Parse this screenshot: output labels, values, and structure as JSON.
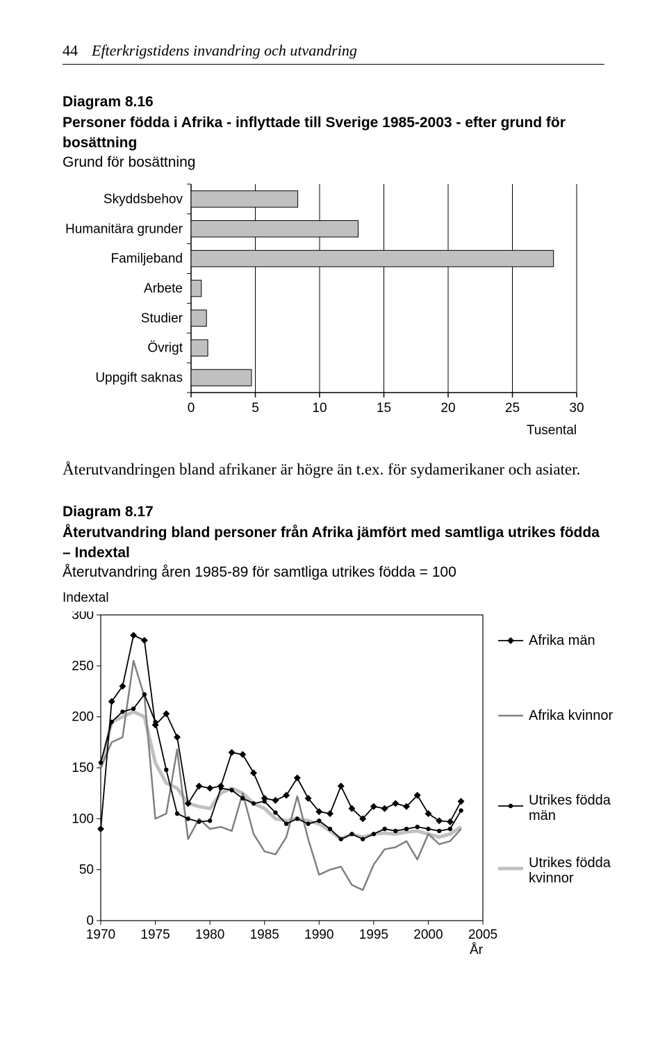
{
  "header": {
    "page_number": "44",
    "running_title": "Efterkrigstidens invandring och utvandring"
  },
  "fig1": {
    "title_line1": "Diagram 8.16",
    "title_line2": "Personer födda i Afrika - inflyttade till Sverige 1985-2003 - efter grund för bosättning",
    "subtitle": "Grund för bosättning",
    "type": "bar",
    "bar_fill": "#c0c0c0",
    "bar_stroke": "#000000",
    "axis_color": "#000000",
    "grid_color": "#000000",
    "tick_color": "#000000",
    "background_color": "#ffffff",
    "label_fontsize": 19,
    "tick_fontsize": 19,
    "xlim": [
      0,
      30
    ],
    "xtick_step": 5,
    "x_axis_label_right": "Tusental",
    "categories": [
      "Skyddsbehov",
      "Humanitära grunder",
      "Familjeband",
      "Arbete",
      "Studier",
      "Övrigt",
      "Uppgift saknas"
    ],
    "values": [
      8.3,
      13.0,
      28.2,
      0.8,
      1.2,
      1.3,
      4.7
    ]
  },
  "body_text": "Återutvandringen bland afrikaner är högre än t.ex. för sydamerikaner och asiater.",
  "fig2": {
    "title_line1": "Diagram 8.17",
    "title_line2": "Återutvandring bland personer från Afrika jämfört med samtliga utrikes födda – Indextal",
    "subtitle_line": "Återutvandring åren 1985-89 för samtliga utrikes födda = 100",
    "y_axis_label": "Indextal",
    "x_axis_label": "År",
    "type": "line",
    "background_color": "#ffffff",
    "axis_color": "#000000",
    "grid_color": "#000000",
    "ylim": [
      0,
      300
    ],
    "ytick_step": 50,
    "xlim": [
      1970,
      2005
    ],
    "xtick_step": 5,
    "label_fontsize": 19,
    "tick_fontsize": 19,
    "legend_fontsize": 20,
    "legend": [
      {
        "label": "Afrika män",
        "color": "#000000",
        "marker": "diamond"
      },
      {
        "label": "Afrika kvinnor",
        "color": "#808080",
        "marker": "none"
      },
      {
        "label": "Utrikes födda män",
        "color": "#000000",
        "marker": "dot"
      },
      {
        "label": "Utrikes födda kvinnor",
        "color": "#c0c0c0",
        "marker": "none"
      }
    ],
    "series": {
      "years": [
        1970,
        1971,
        1972,
        1973,
        1974,
        1975,
        1976,
        1977,
        1978,
        1979,
        1980,
        1981,
        1982,
        1983,
        1984,
        1985,
        1986,
        1987,
        1988,
        1989,
        1990,
        1991,
        1992,
        1993,
        1994,
        1995,
        1996,
        1997,
        1998,
        1999,
        2000,
        2001,
        2002,
        2003
      ],
      "afrika_man": [
        90,
        215,
        230,
        280,
        275,
        192,
        203,
        180,
        115,
        132,
        130,
        132,
        165,
        163,
        145,
        120,
        118,
        123,
        140,
        120,
        107,
        105,
        132,
        110,
        100,
        112,
        110,
        115,
        112,
        123,
        105,
        98,
        97,
        117
      ],
      "afrika_kvinnor": [
        150,
        175,
        180,
        255,
        220,
        100,
        105,
        168,
        80,
        100,
        90,
        92,
        88,
        125,
        85,
        68,
        65,
        82,
        122,
        80,
        45,
        50,
        53,
        35,
        30,
        55,
        70,
        72,
        78,
        60,
        85,
        75,
        78,
        90
      ],
      "utrikes_man": [
        155,
        195,
        205,
        208,
        222,
        195,
        148,
        105,
        100,
        97,
        98,
        130,
        128,
        120,
        115,
        117,
        106,
        95,
        100,
        95,
        98,
        90,
        80,
        85,
        80,
        85,
        90,
        88,
        90,
        92,
        90,
        88,
        90,
        108
      ],
      "utrikes_kvinnor": [
        150,
        195,
        200,
        205,
        200,
        155,
        135,
        130,
        115,
        112,
        110,
        125,
        130,
        125,
        115,
        110,
        100,
        98,
        100,
        98,
        95,
        88,
        80,
        85,
        82,
        85,
        86,
        85,
        87,
        88,
        85,
        82,
        85,
        92
      ]
    }
  }
}
